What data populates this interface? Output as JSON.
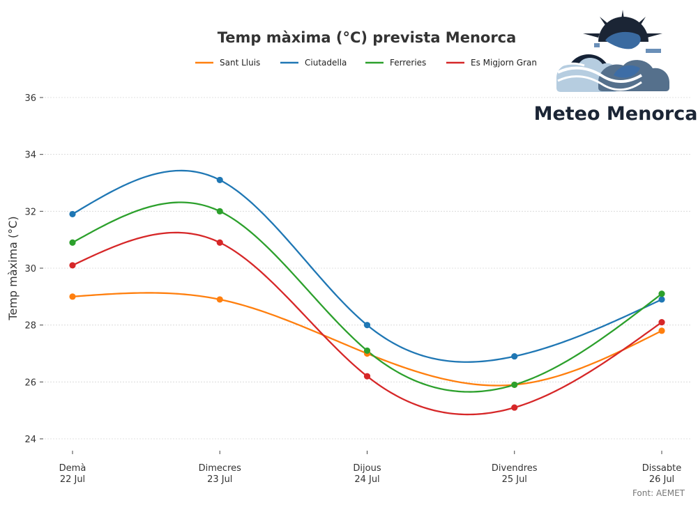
{
  "chart_data": {
    "type": "line",
    "title": "Temp màxima (°C) prevista Menorca",
    "ylabel": "Temp màxima (°C)",
    "xlabel": "",
    "categories": [
      [
        "Demà",
        "22 Jul"
      ],
      [
        "Dimecres",
        "23 Jul"
      ],
      [
        "Dijous",
        "24 Jul"
      ],
      [
        "Divendres",
        "25 Jul"
      ],
      [
        "Dissabte",
        "26 Jul"
      ]
    ],
    "yticks": [
      24,
      26,
      28,
      30,
      32,
      34,
      36
    ],
    "ylim": [
      23.5,
      37.0
    ],
    "grid": true,
    "legend_position": "top-center",
    "series": [
      {
        "name": "Sant Lluis",
        "color": "#ff7f0e",
        "values": [
          29.0,
          28.9,
          27.0,
          25.9,
          27.8
        ]
      },
      {
        "name": "Ciutadella",
        "color": "#1f77b4",
        "values": [
          31.9,
          33.1,
          28.0,
          26.9,
          28.9
        ]
      },
      {
        "name": "Ferreries",
        "color": "#2ca02c",
        "values": [
          30.9,
          32.0,
          27.1,
          25.9,
          29.1
        ]
      },
      {
        "name": "Es Migjorn Gran",
        "color": "#d62728",
        "values": [
          30.1,
          30.9,
          26.2,
          25.1,
          28.1
        ]
      }
    ]
  },
  "source_text": "Font: AEMET",
  "brand": {
    "logo_icon": "sun-wave-island-logo-icon",
    "name": "Meteo Menorca"
  }
}
